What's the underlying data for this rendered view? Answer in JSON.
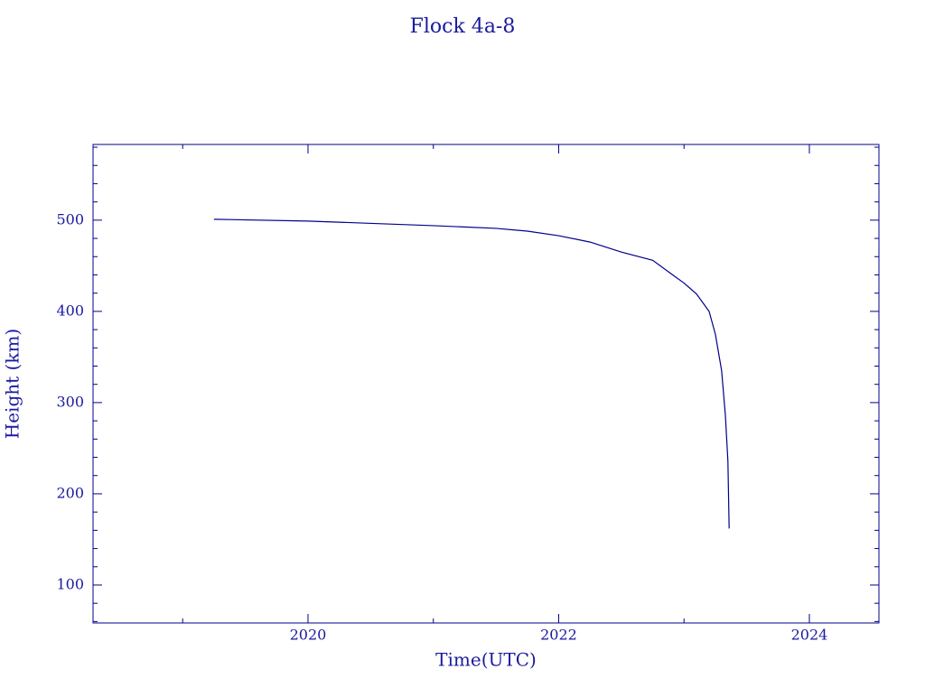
{
  "chart_data": {
    "type": "line",
    "title": "Flock 4a-8",
    "x_label": "Time(UTC)",
    "y_label": "Height (km)",
    "color": "#00008b",
    "x": [
      2019.25,
      2020.0,
      2021.0,
      2021.5,
      2021.75,
      2022.0,
      2022.25,
      2022.5,
      2022.75,
      2022.9,
      2023.0,
      2023.1,
      2023.2,
      2023.25,
      2023.3,
      2023.33,
      2023.35,
      2023.36
    ],
    "values": [
      501,
      499,
      494,
      491,
      488,
      483,
      476,
      465,
      456,
      441,
      431,
      419,
      400,
      375,
      335,
      286,
      236,
      162
    ],
    "xlim": [
      2018.285,
      2024.555
    ],
    "ylim": [
      58.4,
      583
    ],
    "xticks": [
      2020,
      2022,
      2024
    ],
    "yticks": [
      100,
      200,
      300,
      400,
      500
    ],
    "xminorticks": [
      2019,
      2021,
      2023
    ],
    "yminorticks": [
      60,
      80,
      120,
      140,
      160,
      180,
      220,
      240,
      260,
      280,
      320,
      340,
      360,
      380,
      420,
      440,
      460,
      480,
      520,
      540,
      560,
      580
    ]
  }
}
